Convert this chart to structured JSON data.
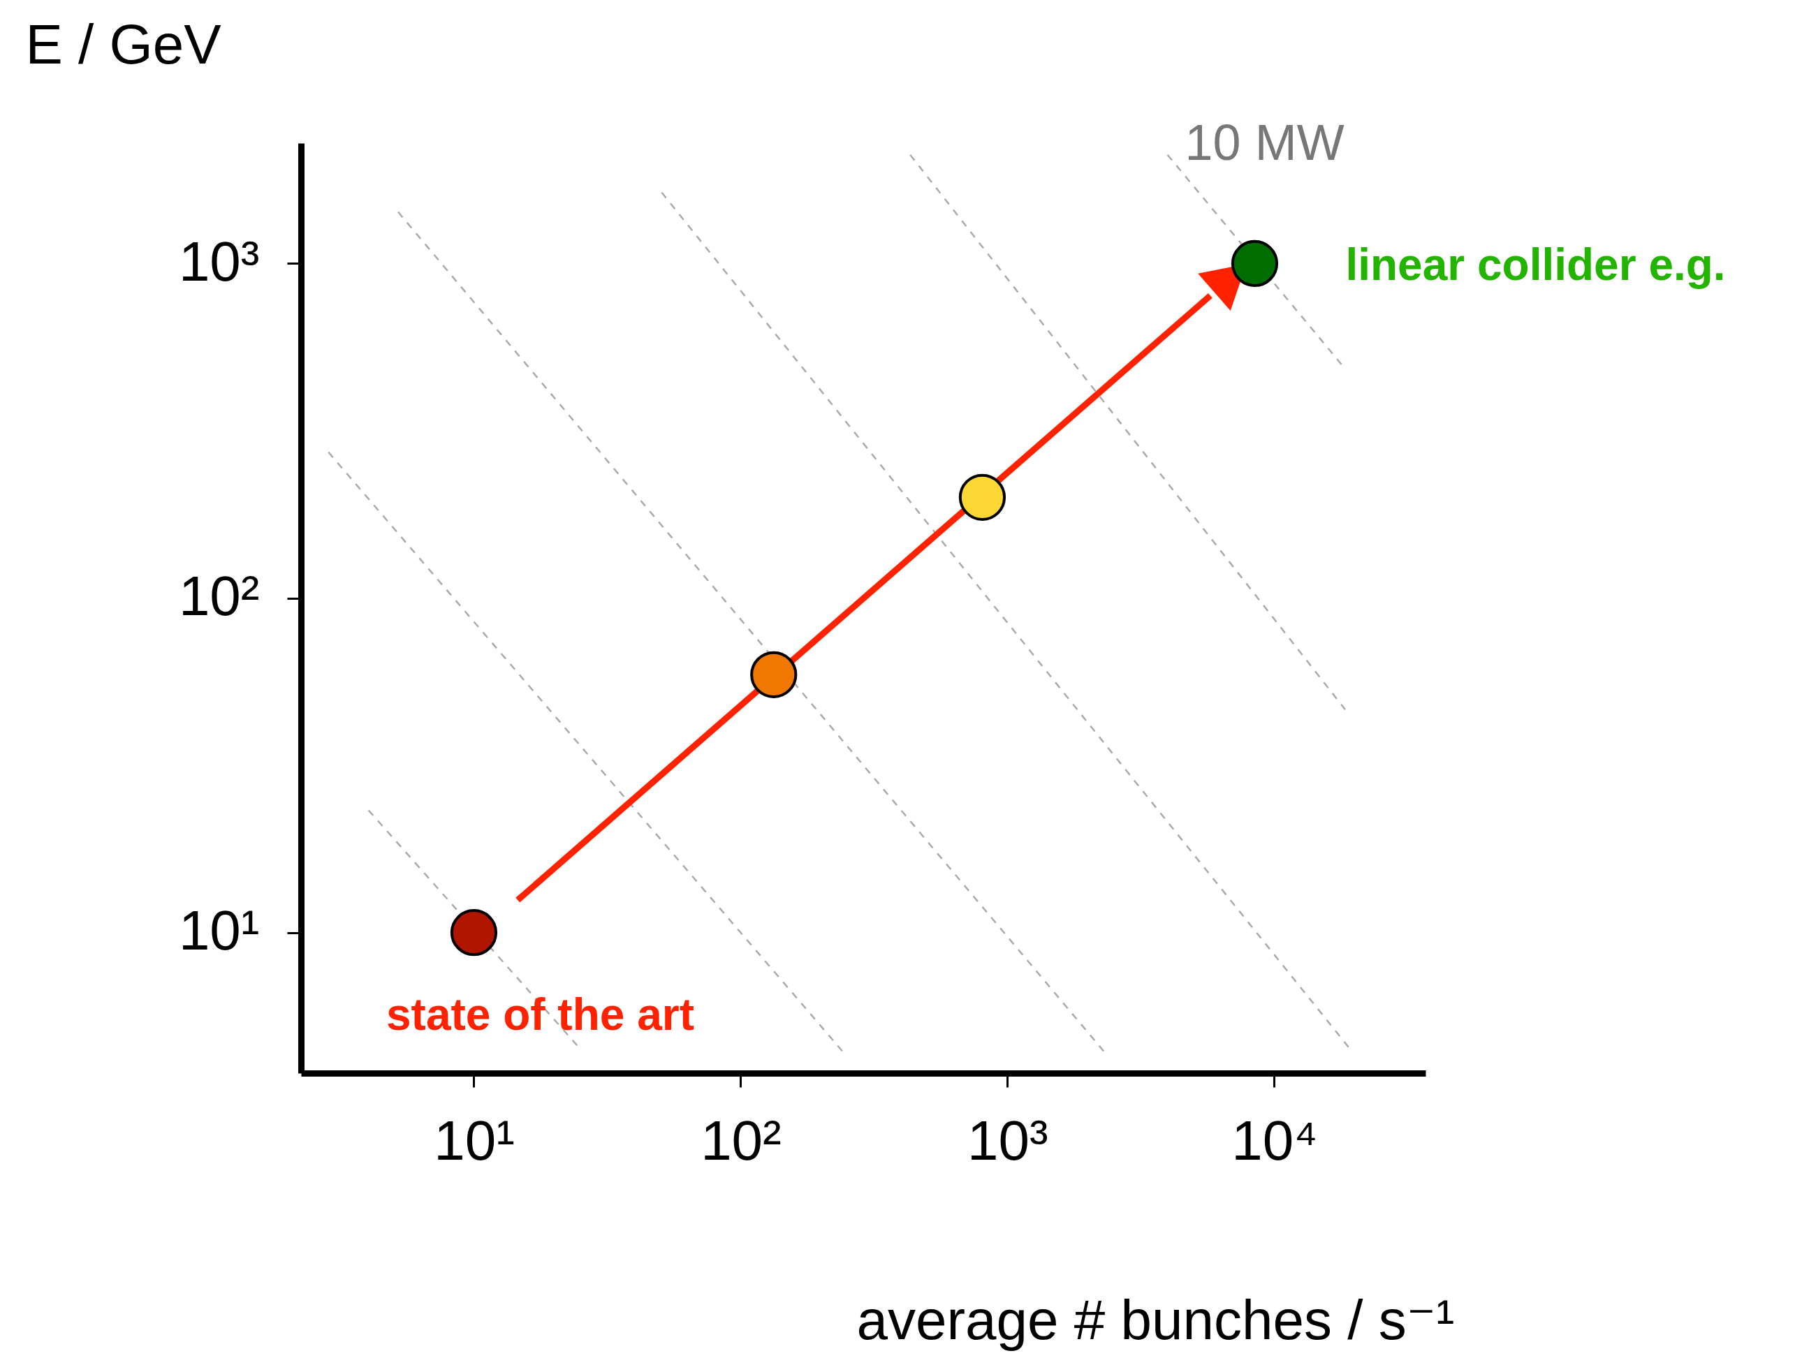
{
  "chart_data": {
    "type": "scatter",
    "xlabel": "average # bunches / s⁻¹",
    "ylabel": "E / GeV",
    "log": "xy",
    "grid": false,
    "xlim": [
      2.25,
      36900
    ],
    "ylim": [
      3.8,
      2290
    ],
    "xticks": [
      {
        "value": 10,
        "label": "10¹"
      },
      {
        "value": 100,
        "label": "10²"
      },
      {
        "value": 1000,
        "label": "10³"
      },
      {
        "value": 10000,
        "label": "10⁴"
      }
    ],
    "yticks": [
      {
        "value": 10,
        "label": "10¹"
      },
      {
        "value": 100,
        "label": "10²"
      },
      {
        "value": 1000,
        "label": "10³"
      }
    ],
    "series": [
      {
        "type": "line",
        "line_style": "dashed",
        "color": "#aaaaaa",
        "x": [
          4.03,
          25.3
        ],
        "values": [
          23.2,
          4.45
        ]
      },
      {
        "type": "line",
        "line_style": "dashed",
        "color": "#aaaaaa",
        "x": [
          2.85,
          243
        ],
        "values": [
          273,
          4.38
        ]
      },
      {
        "type": "line",
        "line_style": "dashed",
        "color": "#aaaaaa",
        "x": [
          5.2,
          2317
        ],
        "values": [
          1426,
          4.38
        ]
      },
      {
        "type": "line",
        "line_style": "dashed",
        "color": "#aaaaaa",
        "x": [
          50.6,
          19400
        ],
        "values": [
          1630,
          4.45
        ]
      },
      {
        "type": "line",
        "line_style": "dashed",
        "color": "#aaaaaa",
        "x": [
          432,
          18450
        ],
        "values": [
          2113,
          46.4
        ]
      },
      {
        "type": "line",
        "line_style": "dashed",
        "color": "#aaaaaa",
        "name": "10 MW",
        "x": [
          3980,
          18450
        ],
        "values": [
          2113,
          484
        ]
      },
      {
        "type": "line",
        "line_style": "solid",
        "color": "#ff2200",
        "x": [
          14.6,
          5760
        ],
        "values": [
          12.5,
          802
        ]
      },
      {
        "marker": "circle",
        "colors": [
          "#b01500",
          "#f07800",
          "#fdd835",
          "#006d00"
        ],
        "x": [
          10,
          133,
          805,
          8450
        ],
        "values": [
          10,
          59,
          200,
          1000
        ]
      }
    ],
    "annotations": [
      {
        "text": "state of the art",
        "x": 10,
        "y": 10
      },
      {
        "text": "linear collider e.g.",
        "x": 8450,
        "y": 1000
      }
    ]
  }
}
